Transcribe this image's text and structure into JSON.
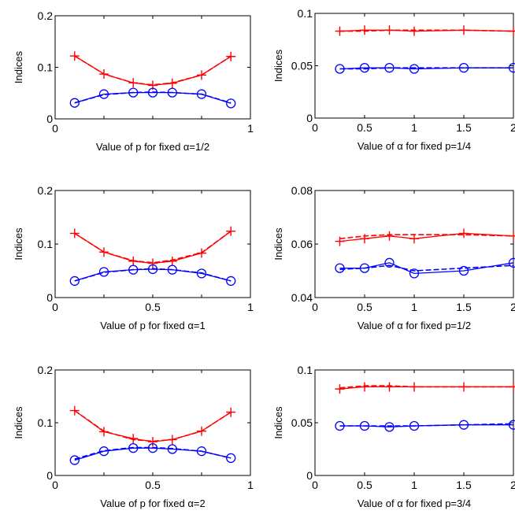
{
  "chart_data": [
    {
      "type": "line",
      "xlabel": "Value of p for fixed α=1/2",
      "ylabel": "Indices",
      "xlim": [
        0,
        1
      ],
      "ylim": [
        0,
        0.2
      ],
      "xticks": [
        "0",
        "",
        "",
        "",
        "1"
      ],
      "yticks": [
        "0",
        "0.1",
        "0.2"
      ],
      "x": [
        0.1,
        0.25,
        0.4,
        0.5,
        0.6,
        0.75,
        0.9
      ],
      "series": [
        {
          "color": "#ff0000",
          "marker": "plus",
          "style": "solid",
          "values": [
            0.122,
            0.087,
            0.07,
            0.065,
            0.069,
            0.085,
            0.121
          ]
        },
        {
          "color": "#ff0000",
          "marker": "none",
          "style": "dashed",
          "values": [
            0.122,
            0.087,
            0.07,
            0.066,
            0.07,
            0.085,
            0.121
          ]
        },
        {
          "color": "#0000ff",
          "marker": "circle",
          "style": "solid",
          "values": [
            0.031,
            0.048,
            0.051,
            0.051,
            0.051,
            0.048,
            0.03
          ]
        },
        {
          "color": "#0000ff",
          "marker": "none",
          "style": "dashed",
          "values": [
            0.031,
            0.047,
            0.051,
            0.052,
            0.051,
            0.048,
            0.031
          ]
        }
      ]
    },
    {
      "type": "line",
      "xlabel": "Value of α for fixed p=1/4",
      "ylabel": "Indices",
      "xlim": [
        0,
        2
      ],
      "ylim": [
        0,
        0.1
      ],
      "xticks": [
        "0",
        "0.5",
        "1",
        "1.5",
        "2"
      ],
      "yticks": [
        "0",
        "0.05",
        "0.1"
      ],
      "x": [
        0.25,
        0.5,
        0.75,
        1,
        1.5,
        2
      ],
      "series": [
        {
          "color": "#ff0000",
          "marker": "plus",
          "style": "solid",
          "values": [
            0.083,
            0.084,
            0.084,
            0.083,
            0.084,
            0.083
          ]
        },
        {
          "color": "#ff0000",
          "marker": "none",
          "style": "dashed",
          "values": [
            0.083,
            0.083,
            0.084,
            0.084,
            0.084,
            0.083
          ]
        },
        {
          "color": "#0000ff",
          "marker": "circle",
          "style": "solid",
          "values": [
            0.047,
            0.048,
            0.048,
            0.047,
            0.048,
            0.048
          ]
        },
        {
          "color": "#0000ff",
          "marker": "none",
          "style": "dashed",
          "values": [
            0.047,
            0.047,
            0.048,
            0.048,
            0.048,
            0.048
          ]
        }
      ]
    },
    {
      "type": "line",
      "xlabel": "Value of p for fixed α=1",
      "ylabel": "Indices",
      "xlim": [
        0,
        1
      ],
      "ylim": [
        0,
        0.2
      ],
      "xticks": [
        "0",
        "",
        "0.5",
        "",
        "1"
      ],
      "yticks": [
        "0",
        "0.1",
        "0.2"
      ],
      "x": [
        0.1,
        0.25,
        0.4,
        0.5,
        0.6,
        0.75,
        0.9
      ],
      "series": [
        {
          "color": "#ff0000",
          "marker": "plus",
          "style": "solid",
          "values": [
            0.12,
            0.085,
            0.068,
            0.064,
            0.068,
            0.083,
            0.124
          ]
        },
        {
          "color": "#ff0000",
          "marker": "none",
          "style": "dashed",
          "values": [
            0.12,
            0.085,
            0.069,
            0.065,
            0.07,
            0.084,
            0.124
          ]
        },
        {
          "color": "#0000ff",
          "marker": "circle",
          "style": "solid",
          "values": [
            0.031,
            0.048,
            0.052,
            0.053,
            0.052,
            0.045,
            0.031
          ]
        },
        {
          "color": "#0000ff",
          "marker": "none",
          "style": "dashed",
          "values": [
            0.031,
            0.047,
            0.052,
            0.054,
            0.052,
            0.046,
            0.031
          ]
        }
      ]
    },
    {
      "type": "line",
      "xlabel": "Value of α for fixed p=1/2",
      "ylabel": "Indices",
      "xlim": [
        0,
        2
      ],
      "ylim": [
        0.04,
        0.08
      ],
      "xticks": [
        "0",
        "0.5",
        "1",
        "1.5",
        "2"
      ],
      "yticks": [
        "0.04",
        "0.06",
        "0.08"
      ],
      "x": [
        0.25,
        0.5,
        0.75,
        1,
        1.5,
        2
      ],
      "series": [
        {
          "color": "#ff0000",
          "marker": "plus",
          "style": "solid",
          "values": [
            0.061,
            0.062,
            0.063,
            0.062,
            0.064,
            0.063
          ]
        },
        {
          "color": "#ff0000",
          "marker": "none",
          "style": "dashed",
          "values": [
            0.062,
            0.063,
            0.0635,
            0.0635,
            0.0635,
            0.063
          ]
        },
        {
          "color": "#0000ff",
          "marker": "circle",
          "style": "solid",
          "values": [
            0.051,
            0.051,
            0.053,
            0.049,
            0.05,
            0.053
          ]
        },
        {
          "color": "#0000ff",
          "marker": "none",
          "style": "dashed",
          "values": [
            0.0505,
            0.051,
            0.052,
            0.05,
            0.051,
            0.052
          ]
        }
      ]
    },
    {
      "type": "line",
      "xlabel": "Value of p for fixed α=2",
      "ylabel": "Indices",
      "xlim": [
        0,
        1
      ],
      "ylim": [
        0,
        0.2
      ],
      "xticks": [
        "0",
        "",
        "0.5",
        "",
        "1"
      ],
      "yticks": [
        "0",
        "0.1",
        "0.2"
      ],
      "x": [
        0.1,
        0.25,
        0.4,
        0.5,
        0.6,
        0.75,
        0.9
      ],
      "series": [
        {
          "color": "#ff0000",
          "marker": "plus",
          "style": "solid",
          "values": [
            0.123,
            0.083,
            0.07,
            0.064,
            0.068,
            0.084,
            0.12
          ]
        },
        {
          "color": "#ff0000",
          "marker": "none",
          "style": "dashed",
          "values": [
            0.123,
            0.084,
            0.068,
            0.065,
            0.068,
            0.084,
            0.12
          ]
        },
        {
          "color": "#0000ff",
          "marker": "circle",
          "style": "solid",
          "values": [
            0.029,
            0.046,
            0.052,
            0.052,
            0.05,
            0.046,
            0.033
          ]
        },
        {
          "color": "#0000ff",
          "marker": "none",
          "style": "dashed",
          "values": [
            0.031,
            0.047,
            0.053,
            0.053,
            0.051,
            0.046,
            0.033
          ]
        }
      ]
    },
    {
      "type": "line",
      "xlabel": "Value of α for fixed p=3/4",
      "ylabel": "Indices",
      "xlim": [
        0,
        2
      ],
      "ylim": [
        0,
        0.1
      ],
      "xticks": [
        "0",
        "0.5",
        "1",
        "1.5",
        "2"
      ],
      "yticks": [
        "0",
        "0.05",
        "0.1"
      ],
      "x": [
        0.25,
        0.5,
        0.75,
        1,
        1.5,
        2
      ],
      "series": [
        {
          "color": "#ff0000",
          "marker": "plus",
          "style": "solid",
          "values": [
            0.082,
            0.084,
            0.084,
            0.084,
            0.084,
            0.084
          ]
        },
        {
          "color": "#ff0000",
          "marker": "none",
          "style": "dashed",
          "values": [
            0.083,
            0.085,
            0.085,
            0.084,
            0.084,
            0.084
          ]
        },
        {
          "color": "#0000ff",
          "marker": "circle",
          "style": "solid",
          "values": [
            0.047,
            0.047,
            0.046,
            0.047,
            0.048,
            0.048
          ]
        },
        {
          "color": "#0000ff",
          "marker": "none",
          "style": "dashed",
          "values": [
            0.047,
            0.047,
            0.047,
            0.047,
            0.048,
            0.049
          ]
        }
      ]
    }
  ]
}
